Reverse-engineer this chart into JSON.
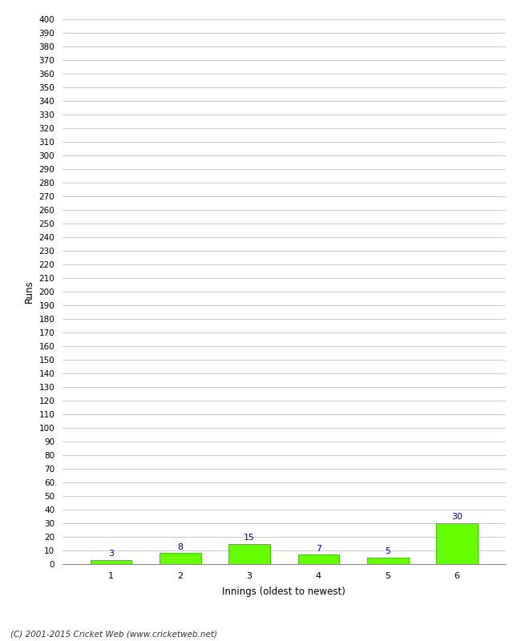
{
  "categories": [
    "1",
    "2",
    "3",
    "4",
    "5",
    "6"
  ],
  "values": [
    3,
    8,
    15,
    7,
    5,
    30
  ],
  "bar_color": "#66ff00",
  "bar_edge_color": "#44cc00",
  "xlabel": "Innings (oldest to newest)",
  "ylabel": "Runs",
  "ylim": [
    0,
    400
  ],
  "ytick_step": 10,
  "value_color": "#0000cc",
  "footer": "(C) 2001-2015 Cricket Web (www.cricketweb.net)",
  "background_color": "#ffffff",
  "grid_color": "#cccccc"
}
